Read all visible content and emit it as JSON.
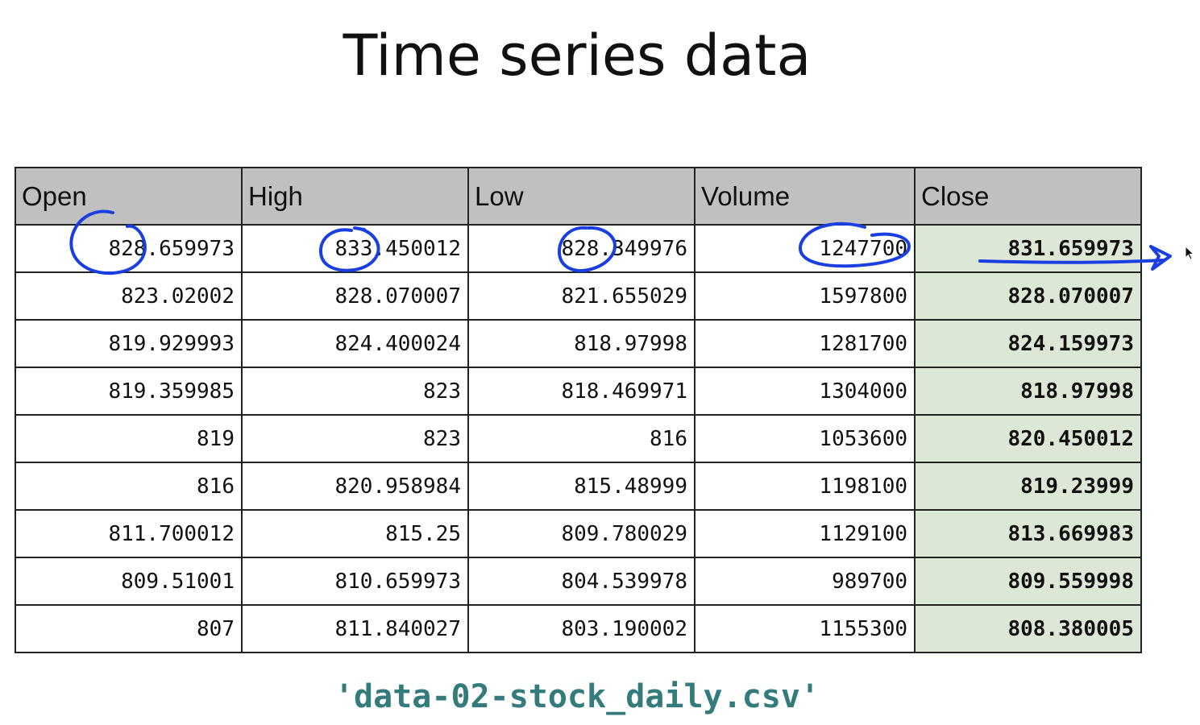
{
  "slide": {
    "title": "Time series data",
    "filename": "'data-02-stock_daily.csv'"
  },
  "table": {
    "headers": [
      "Open",
      "High",
      "Low",
      "Volume",
      "Close"
    ],
    "rows": [
      [
        "828.659973",
        "833.450012",
        "828.349976",
        "1247700",
        "831.659973"
      ],
      [
        "823.02002",
        "828.070007",
        "821.655029",
        "1597800",
        "828.070007"
      ],
      [
        "819.929993",
        "824.400024",
        "818.97998",
        "1281700",
        "824.159973"
      ],
      [
        "819.359985",
        "823",
        "818.469971",
        "1304000",
        "818.97998"
      ],
      [
        "819",
        "823",
        "816",
        "1053600",
        "820.450012"
      ],
      [
        "816",
        "820.958984",
        "815.48999",
        "1198100",
        "819.23999"
      ],
      [
        "811.700012",
        "815.25",
        "809.780029",
        "1129100",
        "813.669983"
      ],
      [
        "809.51001",
        "810.659973",
        "804.539978",
        "989700",
        "809.559998"
      ],
      [
        "807",
        "811.840027",
        "803.190002",
        "1155300",
        "808.380005"
      ]
    ]
  },
  "colors": {
    "header_bg": "#c0c0c0",
    "close_column_bg": "#dce7d5",
    "filename": "#347b7c",
    "annotation_ink": "#1a3fe0"
  }
}
